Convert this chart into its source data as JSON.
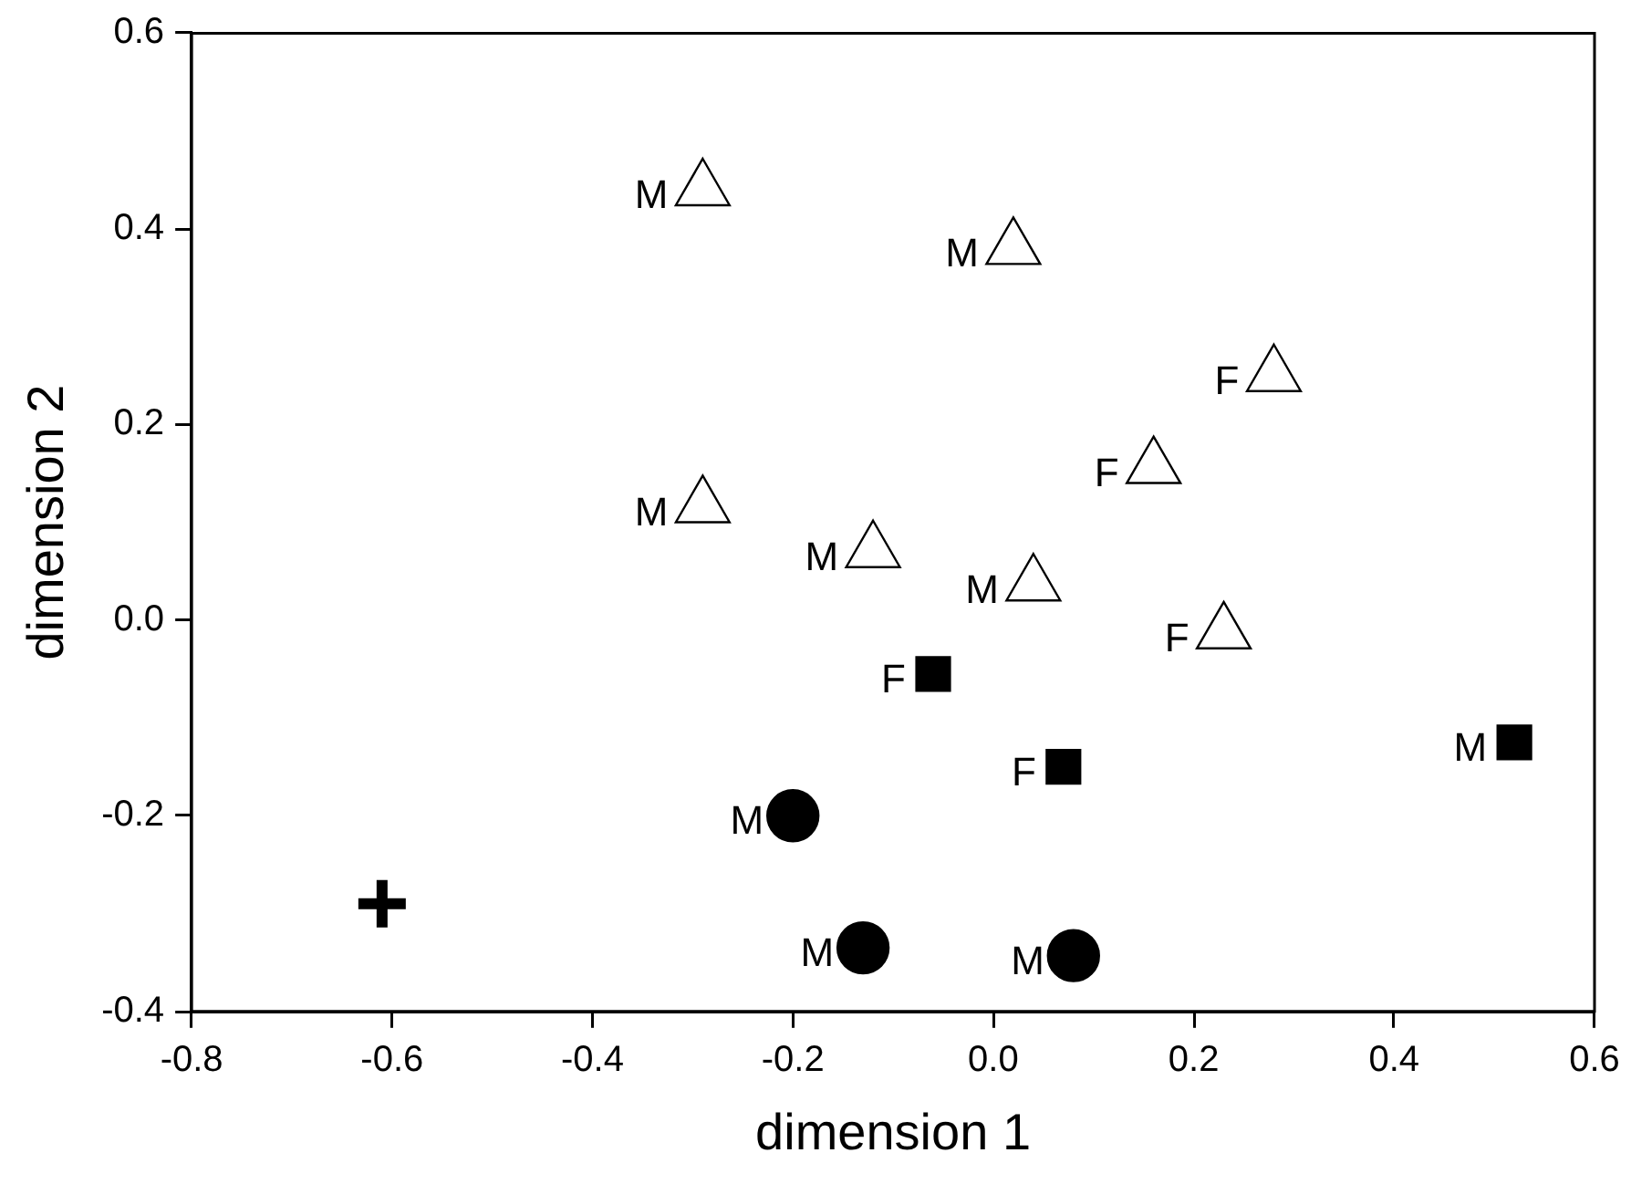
{
  "chart_data": {
    "type": "scatter",
    "xlabel": "dimension 1",
    "ylabel": "dimension 2",
    "xlim": [
      -0.8,
      0.6
    ],
    "xticks": [
      -0.8,
      -0.6,
      -0.4,
      -0.2,
      {
        "value": 0,
        "label": "0.0"
      },
      0.2,
      0.4,
      0.6
    ],
    "ylim": [
      -0.4,
      0.6
    ],
    "yticks": [
      -0.4,
      -0.2,
      {
        "value": 0,
        "label": "0.0"
      },
      0.2,
      0.4,
      0.6
    ],
    "grid": false,
    "legend": false,
    "series": [
      {
        "color": "#000000",
        "marker": "triangle",
        "x": [
          -0.29,
          0.02,
          0.28,
          0.16,
          -0.29,
          -0.12,
          0.04,
          0.23
        ],
        "values": [
          0.44,
          0.38,
          0.25,
          0.156,
          0.116,
          0.07,
          0.036,
          -0.013
        ],
        "value_labels": [
          "M",
          "M",
          "F",
          "F",
          "M",
          "M",
          "M",
          "F"
        ]
      },
      {
        "color": "#000000",
        "marker": "square",
        "x": [
          -0.06,
          0.07,
          0.52
        ],
        "values": [
          -0.055,
          -0.15,
          -0.125
        ],
        "value_labels": [
          "F",
          "F",
          "M"
        ]
      },
      {
        "color": "#000000",
        "marker": "circle",
        "x": [
          -0.2,
          -0.13,
          0.08
        ],
        "values": [
          -0.2,
          -0.335,
          -0.343
        ],
        "value_labels": [
          "M",
          "M",
          "M"
        ]
      },
      {
        "color": "#000000",
        "marker": "cross",
        "x": [
          -0.61
        ],
        "values": [
          -0.29
        ]
      }
    ]
  }
}
